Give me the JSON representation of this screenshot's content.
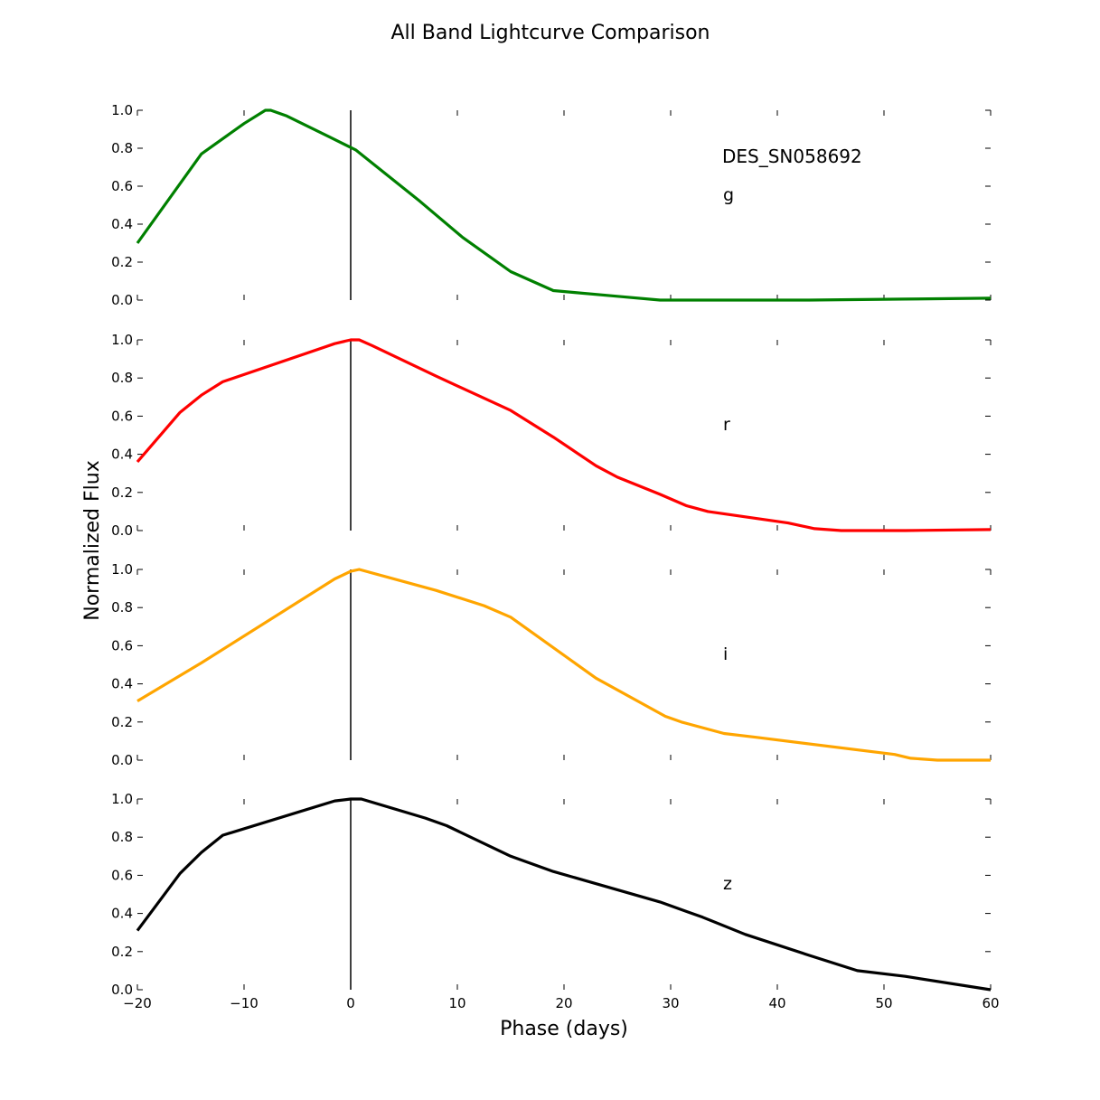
{
  "figure_title": "All Band Lightcurve Comparison",
  "chart_data": {
    "type": "line",
    "title": "All Band Lightcurve Comparison",
    "xlabel": "Phase (days)",
    "ylabel": "Normalized Flux",
    "xlim": [
      -20,
      60
    ],
    "ylim": [
      0,
      1
    ],
    "x_ticks": [
      "−20",
      "−10",
      "0",
      "10",
      "20",
      "30",
      "40",
      "50",
      "60"
    ],
    "y_ticks": [
      "0.0",
      "0.2",
      "0.4",
      "0.6",
      "0.8",
      "1.0"
    ],
    "vline_x": 0,
    "grid": false,
    "legend": "none",
    "object_name": "DES_SN058692",
    "panels": [
      {
        "band": "g",
        "color": "#008000",
        "x": [
          -20,
          -14,
          -10,
          -8,
          -7.5,
          -6,
          -2,
          0.5,
          2.5,
          6.5,
          10.5,
          13,
          15,
          17,
          19,
          21,
          25,
          29,
          35,
          43,
          52,
          60
        ],
        "y": [
          0.3,
          0.77,
          0.93,
          1.0,
          1.0,
          0.97,
          0.86,
          0.79,
          0.7,
          0.52,
          0.33,
          0.23,
          0.15,
          0.1,
          0.05,
          0.04,
          0.02,
          0.0,
          0.0,
          0.0,
          0.005,
          0.01
        ]
      },
      {
        "band": "r",
        "color": "#ff0000",
        "x": [
          -20,
          -16,
          -14,
          -12,
          -1.5,
          0,
          0.8,
          2,
          8,
          15,
          19,
          23,
          25,
          29,
          31.5,
          33.5,
          41,
          43.5,
          46,
          52,
          60
        ],
        "y": [
          0.36,
          0.62,
          0.71,
          0.78,
          0.98,
          1.0,
          1.0,
          0.97,
          0.81,
          0.63,
          0.49,
          0.34,
          0.28,
          0.19,
          0.13,
          0.1,
          0.04,
          0.01,
          0.0,
          0.0,
          0.005
        ]
      },
      {
        "band": "i",
        "color": "#ffa500",
        "x": [
          -20,
          -14,
          -1.5,
          0,
          0.8,
          8,
          12.5,
          15,
          23,
          29.5,
          31,
          35,
          38,
          51,
          52.5,
          55,
          60
        ],
        "y": [
          0.31,
          0.51,
          0.95,
          0.99,
          1.0,
          0.89,
          0.81,
          0.75,
          0.43,
          0.23,
          0.2,
          0.14,
          0.12,
          0.03,
          0.01,
          0.0,
          0.0
        ]
      },
      {
        "band": "z",
        "color": "#000000",
        "x": [
          -20,
          -16,
          -14,
          -12,
          -1.5,
          0,
          1,
          7,
          9,
          15,
          19,
          29,
          33,
          37,
          43,
          47.5,
          52,
          60
        ],
        "y": [
          0.31,
          0.61,
          0.72,
          0.81,
          0.99,
          1.0,
          1.0,
          0.9,
          0.86,
          0.7,
          0.62,
          0.46,
          0.38,
          0.29,
          0.18,
          0.1,
          0.07,
          0.0
        ]
      }
    ]
  }
}
